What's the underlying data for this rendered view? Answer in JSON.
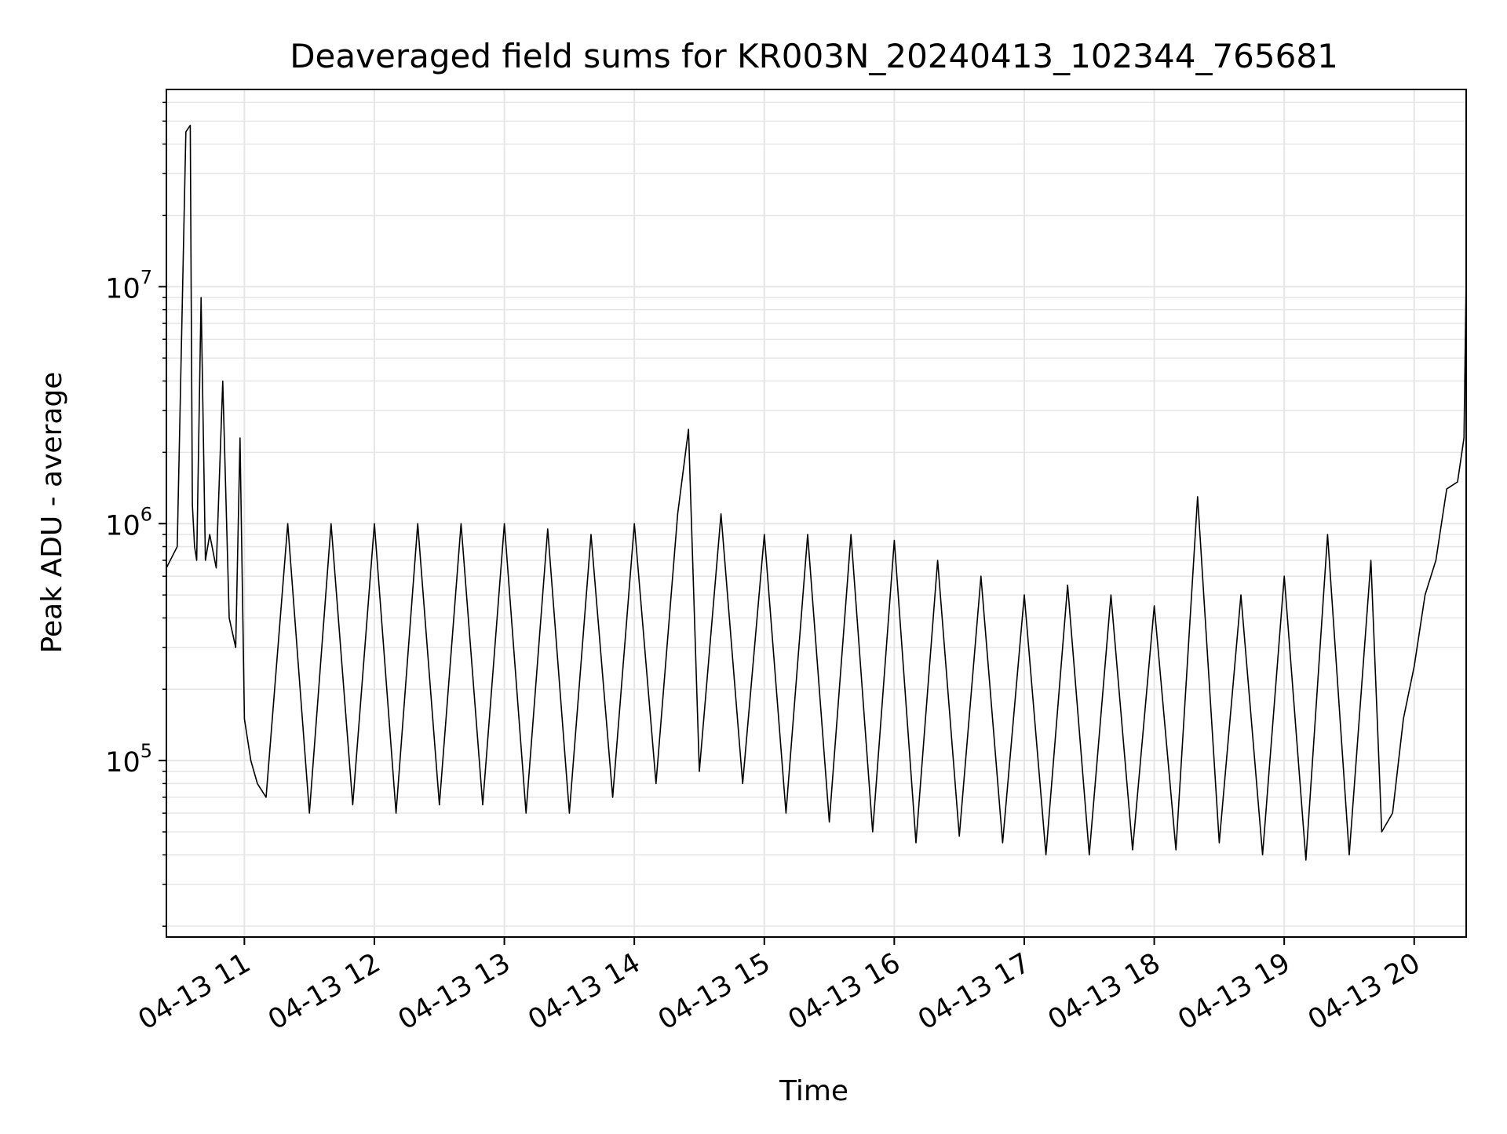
{
  "chart_data": {
    "type": "line",
    "title": "Deaveraged field sums for KR003N_20240413_102344_765681",
    "xlabel": "Time",
    "ylabel": "Peak ADU - average",
    "y_scale": "log",
    "ylim": [
      18000,
      68000000
    ],
    "xlim": [
      "2024-04-13 10:24",
      "2024-04-13 20:24"
    ],
    "grid": true,
    "line_color": "#000000",
    "grid_color": "#e6e6e6",
    "x_ticks": [
      {
        "value": "2024-04-13 11:00",
        "label": "04-13 11"
      },
      {
        "value": "2024-04-13 12:00",
        "label": "04-13 12"
      },
      {
        "value": "2024-04-13 13:00",
        "label": "04-13 13"
      },
      {
        "value": "2024-04-13 14:00",
        "label": "04-13 14"
      },
      {
        "value": "2024-04-13 15:00",
        "label": "04-13 15"
      },
      {
        "value": "2024-04-13 16:00",
        "label": "04-13 16"
      },
      {
        "value": "2024-04-13 17:00",
        "label": "04-13 17"
      },
      {
        "value": "2024-04-13 18:00",
        "label": "04-13 18"
      },
      {
        "value": "2024-04-13 19:00",
        "label": "04-13 19"
      },
      {
        "value": "2024-04-13 20:00",
        "label": "04-13 20"
      }
    ],
    "y_ticks": [
      {
        "value": 100000,
        "base": "10",
        "exp": "5"
      },
      {
        "value": 1000000,
        "base": "10",
        "exp": "6"
      },
      {
        "value": 10000000,
        "base": "10",
        "exp": "7"
      }
    ],
    "series": [
      {
        "x": [
          "2024-04-13 10:24",
          "2024-04-13 10:29",
          "2024-04-13 10:33",
          "2024-04-13 10:35",
          "2024-04-13 10:36",
          "2024-04-13 10:37",
          "2024-04-13 10:38",
          "2024-04-13 10:40",
          "2024-04-13 10:42",
          "2024-04-13 10:44",
          "2024-04-13 10:47",
          "2024-04-13 10:50",
          "2024-04-13 10:53",
          "2024-04-13 10:56",
          "2024-04-13 10:58",
          "2024-04-13 11:00",
          "2024-04-13 11:03",
          "2024-04-13 11:06",
          "2024-04-13 11:10",
          "2024-04-13 11:20",
          "2024-04-13 11:30",
          "2024-04-13 11:40",
          "2024-04-13 11:50",
          "2024-04-13 12:00",
          "2024-04-13 12:10",
          "2024-04-13 12:20",
          "2024-04-13 12:30",
          "2024-04-13 12:40",
          "2024-04-13 12:50",
          "2024-04-13 13:00",
          "2024-04-13 13:10",
          "2024-04-13 13:20",
          "2024-04-13 13:30",
          "2024-04-13 13:40",
          "2024-04-13 13:50",
          "2024-04-13 14:00",
          "2024-04-13 14:10",
          "2024-04-13 14:20",
          "2024-04-13 14:25",
          "2024-04-13 14:30",
          "2024-04-13 14:40",
          "2024-04-13 14:50",
          "2024-04-13 15:00",
          "2024-04-13 15:10",
          "2024-04-13 15:20",
          "2024-04-13 15:30",
          "2024-04-13 15:40",
          "2024-04-13 15:50",
          "2024-04-13 16:00",
          "2024-04-13 16:10",
          "2024-04-13 16:20",
          "2024-04-13 16:30",
          "2024-04-13 16:40",
          "2024-04-13 16:50",
          "2024-04-13 17:00",
          "2024-04-13 17:10",
          "2024-04-13 17:20",
          "2024-04-13 17:30",
          "2024-04-13 17:40",
          "2024-04-13 17:50",
          "2024-04-13 18:00",
          "2024-04-13 18:10",
          "2024-04-13 18:20",
          "2024-04-13 18:30",
          "2024-04-13 18:40",
          "2024-04-13 18:50",
          "2024-04-13 19:00",
          "2024-04-13 19:10",
          "2024-04-13 19:20",
          "2024-04-13 19:30",
          "2024-04-13 19:40",
          "2024-04-13 19:45",
          "2024-04-13 19:50",
          "2024-04-13 19:55",
          "2024-04-13 20:00",
          "2024-04-13 20:05",
          "2024-04-13 20:10",
          "2024-04-13 20:15",
          "2024-04-13 20:20",
          "2024-04-13 20:23",
          "2024-04-13 20:24"
        ],
        "y": [
          650000,
          800000,
          45000000,
          48000000,
          1200000,
          800000,
          700000,
          9000000,
          700000,
          900000,
          650000,
          4000000,
          400000,
          300000,
          2300000,
          150000,
          100000,
          80000,
          70000,
          1000000,
          60000,
          1000000,
          65000,
          1000000,
          60000,
          1000000,
          65000,
          1000000,
          65000,
          1000000,
          60000,
          950000,
          60000,
          900000,
          70000,
          1000000,
          80000,
          1100000,
          2500000,
          90000,
          1100000,
          80000,
          900000,
          60000,
          900000,
          55000,
          900000,
          50000,
          850000,
          45000,
          700000,
          48000,
          600000,
          45000,
          500000,
          40000,
          550000,
          40000,
          500000,
          42000,
          450000,
          42000,
          1300000,
          45000,
          500000,
          40000,
          600000,
          38000,
          900000,
          40000,
          700000,
          50000,
          60000,
          150000,
          250000,
          500000,
          700000,
          1400000,
          1500000,
          2300000,
          11000000
        ]
      }
    ]
  }
}
